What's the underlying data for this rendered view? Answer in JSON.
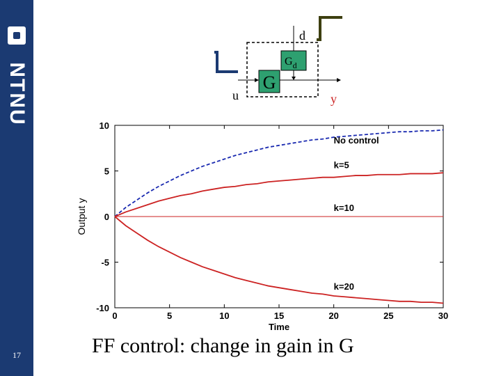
{
  "sidebar": {
    "logo_text": "NTNU",
    "page_number": "17",
    "color": "#1b3a72"
  },
  "diagram": {
    "input_label": "u",
    "output_label": "y",
    "disturbance_label": "d",
    "plant_label": "G",
    "disturbance_model_label": "G",
    "disturbance_model_subscript": "d",
    "block_color": "#2ea070",
    "step_colors": [
      "#1b3a72",
      "#3d3f10"
    ]
  },
  "slide_title": "FF control: change in gain in G",
  "chart_data": {
    "type": "line",
    "xlabel": "Time",
    "ylabel": "Output y",
    "xlim": [
      0,
      30
    ],
    "ylim": [
      -10,
      10
    ],
    "xticks": [
      0,
      5,
      10,
      15,
      20,
      25,
      30
    ],
    "yticks": [
      -10,
      -5,
      0,
      5,
      10
    ],
    "grid": false,
    "x": [
      0,
      1,
      2,
      3,
      4,
      5,
      6,
      7,
      8,
      9,
      10,
      11,
      12,
      13,
      14,
      15,
      16,
      17,
      18,
      19,
      20,
      21,
      22,
      23,
      24,
      25,
      26,
      27,
      28,
      29,
      30
    ],
    "series": [
      {
        "name": "No control",
        "color": "#1a2ab0",
        "dash": true,
        "values": [
          0,
          1.0,
          1.8,
          2.6,
          3.3,
          3.9,
          4.5,
          5.0,
          5.5,
          5.9,
          6.3,
          6.7,
          7.0,
          7.3,
          7.6,
          7.8,
          8.0,
          8.2,
          8.4,
          8.5,
          8.7,
          8.8,
          8.9,
          9.0,
          9.1,
          9.2,
          9.3,
          9.3,
          9.4,
          9.4,
          9.5
        ]
      },
      {
        "name": "k=5",
        "color": "#cc2222",
        "dash": false,
        "values": [
          0,
          0.5,
          0.9,
          1.3,
          1.7,
          2.0,
          2.3,
          2.5,
          2.8,
          3.0,
          3.2,
          3.3,
          3.5,
          3.6,
          3.8,
          3.9,
          4.0,
          4.1,
          4.2,
          4.3,
          4.3,
          4.4,
          4.5,
          4.5,
          4.6,
          4.6,
          4.6,
          4.7,
          4.7,
          4.7,
          4.8
        ]
      },
      {
        "name": "k=10",
        "color": "#cc2222",
        "dash": false,
        "values": [
          0,
          0,
          0,
          0,
          0,
          0,
          0,
          0,
          0,
          0,
          0,
          0,
          0,
          0,
          0,
          0,
          0,
          0,
          0,
          0,
          0,
          0,
          0,
          0,
          0,
          0,
          0,
          0,
          0,
          0,
          0
        ]
      },
      {
        "name": "k=20",
        "color": "#cc2222",
        "dash": false,
        "values": [
          0,
          -1.0,
          -1.8,
          -2.6,
          -3.3,
          -3.9,
          -4.5,
          -5.0,
          -5.5,
          -5.9,
          -6.3,
          -6.7,
          -7.0,
          -7.3,
          -7.6,
          -7.8,
          -8.0,
          -8.2,
          -8.4,
          -8.5,
          -8.7,
          -8.8,
          -8.9,
          -9.0,
          -9.1,
          -9.2,
          -9.3,
          -9.3,
          -9.4,
          -9.4,
          -9.5
        ]
      }
    ],
    "annotations": [
      {
        "text": "No control",
        "x": 20,
        "y": 8.0
      },
      {
        "text": "k=5",
        "x": 20,
        "y": 5.3
      },
      {
        "text": "k=10",
        "x": 20,
        "y": 0.6
      },
      {
        "text": "k=20",
        "x": 20,
        "y": -8.0
      }
    ]
  }
}
